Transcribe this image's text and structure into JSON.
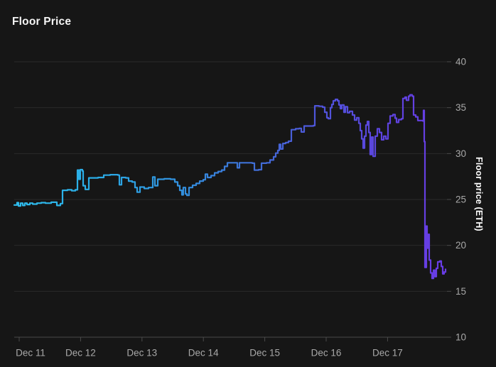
{
  "title": "Floor Price",
  "colors": {
    "background": "#161616",
    "grid": "#2a2a2a",
    "axis": "#4b4b4b",
    "tick_text": "#a8a8a8",
    "title_text": "#f4f4f4",
    "ylabel_text": "#ffffff",
    "line_gradient": [
      "#2fbcec",
      "#2aabe6",
      "#338ede",
      "#3f6fd6",
      "#4f55da",
      "#5c44de",
      "#6a3ce6"
    ]
  },
  "chart_data": {
    "type": "line",
    "title": "Floor Price",
    "ylabel": "Floor price (ETH)",
    "xlabel": "",
    "legend": false,
    "grid": true,
    "ylim": [
      10,
      40
    ],
    "y_ticks": [
      10,
      15,
      20,
      25,
      30,
      35,
      40
    ],
    "x_tick_labels": [
      "Dec 11",
      "Dec 12",
      "Dec 13",
      "Dec 14",
      "Dec 15",
      "Dec 16",
      "Dec 17"
    ],
    "x_unit": "days since Dec 11 tick (fractional)",
    "interpolation": "step-after",
    "points": [
      [
        -0.081,
        24.4
      ],
      [
        -0.035,
        24.65
      ],
      [
        -0.012,
        24.3
      ],
      [
        0.023,
        24.6
      ],
      [
        0.058,
        24.35
      ],
      [
        0.093,
        24.6
      ],
      [
        0.127,
        24.45
      ],
      [
        0.174,
        24.6
      ],
      [
        0.22,
        24.5
      ],
      [
        0.289,
        24.6
      ],
      [
        0.359,
        24.65
      ],
      [
        0.428,
        24.6
      ],
      [
        0.521,
        24.7
      ],
      [
        0.613,
        24.35
      ],
      [
        0.671,
        24.55
      ],
      [
        0.706,
        26.0
      ],
      [
        0.787,
        26.05
      ],
      [
        0.856,
        25.95
      ],
      [
        0.914,
        26.05
      ],
      [
        0.949,
        28.2
      ],
      [
        0.972,
        27.2
      ],
      [
        0.995,
        28.25
      ],
      [
        1.03,
        28.1
      ],
      [
        1.042,
        26.5
      ],
      [
        1.076,
        26.1
      ],
      [
        1.134,
        27.35
      ],
      [
        1.285,
        27.4
      ],
      [
        1.377,
        27.65
      ],
      [
        1.481,
        27.7
      ],
      [
        1.609,
        27.65
      ],
      [
        1.632,
        26.6
      ],
      [
        1.667,
        27.4
      ],
      [
        1.736,
        27.35
      ],
      [
        1.782,
        27.0
      ],
      [
        1.84,
        26.9
      ],
      [
        1.887,
        26.3
      ],
      [
        1.921,
        25.8
      ],
      [
        1.968,
        26.35
      ],
      [
        2.037,
        26.2
      ],
      [
        2.106,
        26.3
      ],
      [
        2.153,
        26.3
      ],
      [
        2.176,
        27.45
      ],
      [
        2.211,
        26.5
      ],
      [
        2.257,
        27.2
      ],
      [
        2.361,
        27.25
      ],
      [
        2.465,
        27.2
      ],
      [
        2.535,
        26.9
      ],
      [
        2.581,
        26.5
      ],
      [
        2.616,
        26.0
      ],
      [
        2.65,
        25.5
      ],
      [
        2.673,
        26.3
      ],
      [
        2.708,
        25.6
      ],
      [
        2.731,
        25.45
      ],
      [
        2.766,
        26.3
      ],
      [
        2.824,
        26.55
      ],
      [
        2.882,
        26.75
      ],
      [
        2.94,
        27.0
      ],
      [
        2.998,
        27.15
      ],
      [
        3.032,
        27.75
      ],
      [
        3.067,
        27.4
      ],
      [
        3.125,
        27.6
      ],
      [
        3.183,
        27.9
      ],
      [
        3.241,
        28.05
      ],
      [
        3.299,
        28.2
      ],
      [
        3.345,
        28.6
      ],
      [
        3.391,
        29.0
      ],
      [
        3.484,
        29.0
      ],
      [
        3.553,
        28.45
      ],
      [
        3.588,
        29.0
      ],
      [
        3.692,
        29.0
      ],
      [
        3.796,
        28.95
      ],
      [
        3.831,
        28.2
      ],
      [
        3.9,
        28.25
      ],
      [
        3.947,
        28.95
      ],
      [
        4.028,
        29.0
      ],
      [
        4.086,
        29.3
      ],
      [
        4.144,
        29.65
      ],
      [
        4.178,
        30.05
      ],
      [
        4.213,
        30.35
      ],
      [
        4.236,
        31.0
      ],
      [
        4.259,
        30.5
      ],
      [
        4.294,
        31.1
      ],
      [
        4.34,
        31.2
      ],
      [
        4.387,
        31.35
      ],
      [
        4.433,
        32.6
      ],
      [
        4.502,
        32.7
      ],
      [
        4.56,
        32.75
      ],
      [
        4.595,
        32.35
      ],
      [
        4.641,
        33.0
      ],
      [
        4.722,
        33.0
      ],
      [
        4.792,
        33.05
      ],
      [
        4.815,
        35.2
      ],
      [
        4.884,
        35.15
      ],
      [
        4.942,
        35.05
      ],
      [
        4.977,
        34.5
      ],
      [
        5.012,
        33.9
      ],
      [
        5.035,
        33.8
      ],
      [
        5.069,
        35.0
      ],
      [
        5.093,
        35.35
      ],
      [
        5.116,
        35.75
      ],
      [
        5.15,
        35.9
      ],
      [
        5.185,
        35.75
      ],
      [
        5.208,
        35.3
      ],
      [
        5.231,
        34.9
      ],
      [
        5.255,
        35.3
      ],
      [
        5.289,
        34.5
      ],
      [
        5.313,
        35.1
      ],
      [
        5.347,
        34.45
      ],
      [
        5.382,
        34.6
      ],
      [
        5.428,
        34.2
      ],
      [
        5.463,
        33.65
      ],
      [
        5.498,
        33.9
      ],
      [
        5.532,
        33.3
      ],
      [
        5.556,
        32.5
      ],
      [
        5.579,
        31.6
      ],
      [
        5.602,
        30.6
      ],
      [
        5.625,
        31.9
      ],
      [
        5.648,
        33.1
      ],
      [
        5.671,
        33.5
      ],
      [
        5.694,
        32.3
      ],
      [
        5.717,
        29.9
      ],
      [
        5.741,
        31.8
      ],
      [
        5.764,
        29.7
      ],
      [
        5.799,
        31.9
      ],
      [
        5.833,
        32.7
      ],
      [
        5.868,
        32.3
      ],
      [
        5.903,
        31.5
      ],
      [
        5.938,
        31.9
      ],
      [
        5.972,
        31.6
      ],
      [
        6.007,
        33.3
      ],
      [
        6.042,
        34.1
      ],
      [
        6.088,
        34.25
      ],
      [
        6.123,
        33.85
      ],
      [
        6.146,
        33.4
      ],
      [
        6.181,
        33.7
      ],
      [
        6.227,
        33.8
      ],
      [
        6.25,
        36.0
      ],
      [
        6.285,
        36.15
      ],
      [
        6.308,
        35.8
      ],
      [
        6.343,
        36.25
      ],
      [
        6.366,
        36.4
      ],
      [
        6.4,
        36.25
      ],
      [
        6.424,
        34.2
      ],
      [
        6.458,
        34.0
      ],
      [
        6.493,
        33.6
      ],
      [
        6.551,
        33.6
      ],
      [
        6.574,
        33.55
      ],
      [
        6.586,
        34.7
      ],
      [
        6.597,
        31.3
      ],
      [
        6.609,
        17.6
      ],
      [
        6.632,
        22.1
      ],
      [
        6.644,
        19.7
      ],
      [
        6.667,
        21.2
      ],
      [
        6.678,
        18.4
      ],
      [
        6.701,
        17.0
      ],
      [
        6.724,
        16.4
      ],
      [
        6.748,
        17.3
      ],
      [
        6.771,
        16.6
      ],
      [
        6.794,
        17.5
      ],
      [
        6.817,
        18.2
      ],
      [
        6.852,
        18.3
      ],
      [
        6.875,
        17.7
      ],
      [
        6.898,
        16.9
      ],
      [
        6.921,
        17.1
      ],
      [
        6.944,
        17.4
      ]
    ]
  }
}
